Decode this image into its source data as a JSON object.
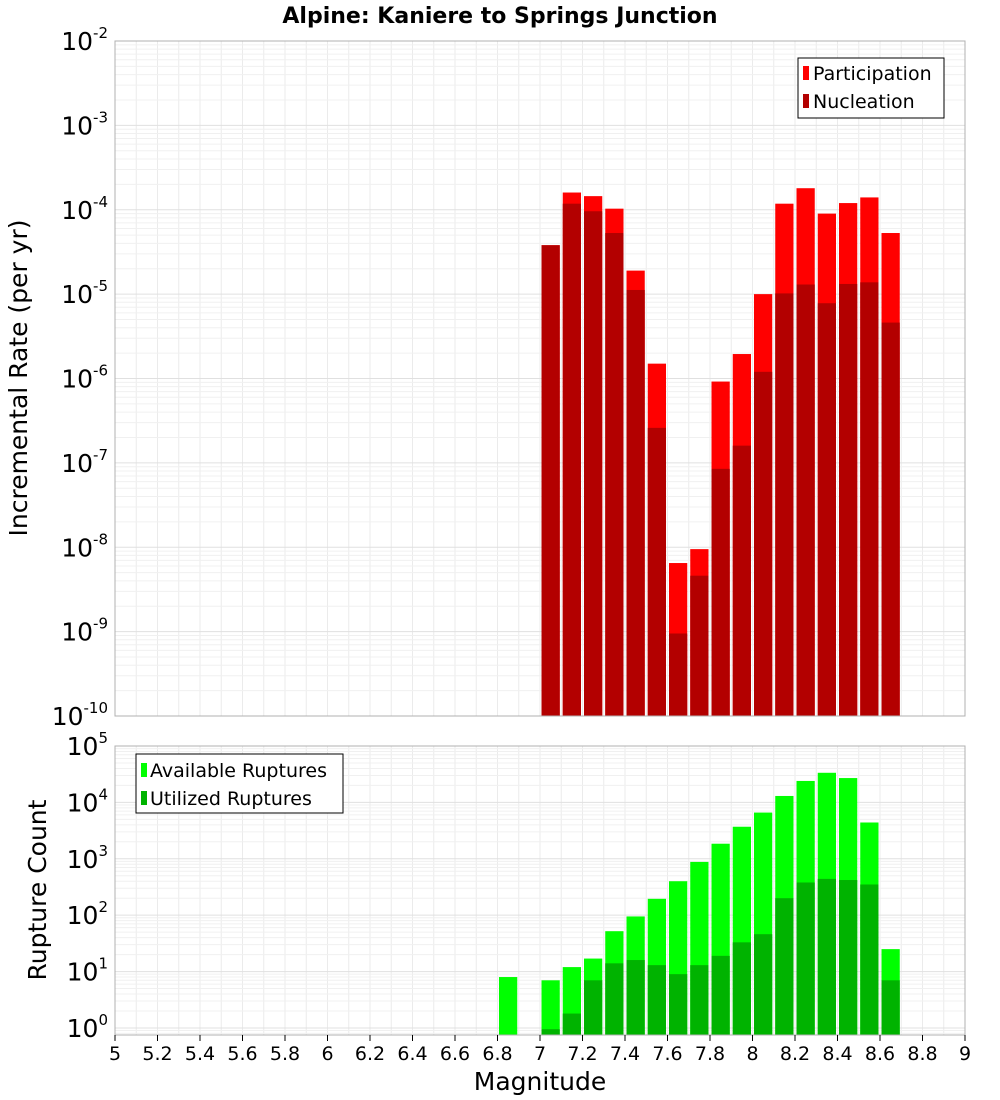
{
  "chart_data": [
    {
      "type": "bar",
      "title": "Alpine: Kaniere to Springs Junction",
      "xlabel": "",
      "ylabel": "Incremental Rate (per yr)",
      "yscale": "log",
      "ylim": [
        1e-10,
        0.01
      ],
      "xlim": [
        5,
        9
      ],
      "bin_width": 0.1,
      "grid": true,
      "legend_position": "top-right",
      "ytick_base": "10",
      "yticks": [
        {
          "exp": "-10",
          "value": 1e-10
        },
        {
          "exp": "-9",
          "value": 1e-09
        },
        {
          "exp": "-8",
          "value": 1e-08
        },
        {
          "exp": "-7",
          "value": 1e-07
        },
        {
          "exp": "-6",
          "value": 1e-06
        },
        {
          "exp": "-5",
          "value": 1e-05
        },
        {
          "exp": "-4",
          "value": 0.0001
        },
        {
          "exp": "-3",
          "value": 0.001
        },
        {
          "exp": "-2",
          "value": 0.01
        }
      ],
      "series": [
        {
          "name": "Participation",
          "color": "#ff0000",
          "x": [
            7.05,
            7.15,
            7.25,
            7.35,
            7.45,
            7.55,
            7.65,
            7.75,
            7.85,
            7.95,
            8.05,
            8.15,
            8.25,
            8.35,
            8.45,
            8.55,
            8.65
          ],
          "values": [
            3.8e-05,
            0.00016,
            0.000145,
            0.000103,
            1.9e-05,
            1.5e-06,
            6.5e-09,
            9.5e-09,
            9.2e-07,
            1.95e-06,
            1e-05,
            0.000118,
            0.00018,
            9e-05,
            0.00012,
            0.00014,
            5.3e-05
          ]
        },
        {
          "name": "Nucleation",
          "color": "#b30000",
          "x": [
            7.05,
            7.15,
            7.25,
            7.35,
            7.45,
            7.55,
            7.65,
            7.75,
            7.85,
            7.95,
            8.05,
            8.15,
            8.25,
            8.35,
            8.45,
            8.55,
            8.65
          ],
          "values": [
            3.8e-05,
            0.000118,
            9.6e-05,
            5.3e-05,
            1.12e-05,
            2.6e-07,
            9.5e-10,
            4.6e-09,
            8.5e-08,
            1.6e-07,
            1.2e-06,
            1.02e-05,
            1.3e-05,
            7.8e-06,
            1.32e-05,
            1.38e-05,
            4.6e-06
          ]
        }
      ]
    },
    {
      "type": "bar",
      "title": "",
      "xlabel": "Magnitude",
      "ylabel": "Rupture Count",
      "yscale": "log",
      "ylim": [
        0.75,
        100000.0
      ],
      "xlim": [
        5,
        9
      ],
      "bin_width": 0.1,
      "grid": true,
      "legend_position": "top-left",
      "xticks": [
        "5",
        "5.2",
        "5.4",
        "5.6",
        "5.8",
        "6",
        "6.2",
        "6.4",
        "6.6",
        "6.8",
        "7",
        "7.2",
        "7.4",
        "7.6",
        "7.8",
        "8",
        "8.2",
        "8.4",
        "8.6",
        "8.8",
        "9"
      ],
      "ytick_base": "10",
      "yticks": [
        {
          "exp": "0",
          "value": 1
        },
        {
          "exp": "1",
          "value": 10
        },
        {
          "exp": "2",
          "value": 100
        },
        {
          "exp": "3",
          "value": 1000
        },
        {
          "exp": "4",
          "value": 10000
        },
        {
          "exp": "5",
          "value": 100000
        }
      ],
      "series": [
        {
          "name": "Available Ruptures",
          "color": "#00ff00",
          "x": [
            6.85,
            7.05,
            7.15,
            7.25,
            7.35,
            7.45,
            7.55,
            7.65,
            7.75,
            7.85,
            7.95,
            8.05,
            8.15,
            8.25,
            8.35,
            8.45,
            8.55,
            8.65
          ],
          "values": [
            8,
            7,
            12,
            17,
            52,
            95,
            195,
            400,
            880,
            1850,
            3700,
            6600,
            13000,
            24000,
            33500,
            27000,
            4400,
            25
          ]
        },
        {
          "name": "Utilized Ruptures",
          "color": "#00b300",
          "x": [
            7.05,
            7.15,
            7.25,
            7.35,
            7.45,
            7.55,
            7.65,
            7.75,
            7.85,
            7.95,
            8.05,
            8.15,
            8.25,
            8.35,
            8.45,
            8.55,
            8.65
          ],
          "values": [
            0.95,
            1.8,
            7,
            14,
            16,
            13,
            9,
            13,
            19,
            33,
            46,
            200,
            380,
            440,
            420,
            350,
            7
          ]
        }
      ]
    }
  ]
}
